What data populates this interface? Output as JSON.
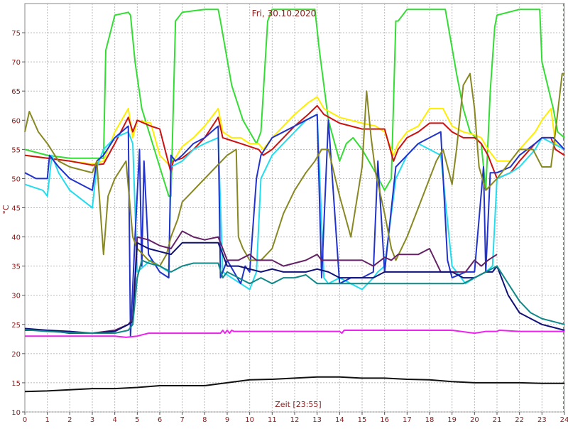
{
  "chart_data": {
    "type": "line",
    "title": "Fri, 30.10.2020",
    "xlabel": "Zeit [23:55]",
    "ylabel": "°C",
    "xlim": [
      0,
      24
    ],
    "ylim": [
      10,
      80
    ],
    "xticks": [
      "0",
      "1",
      "2",
      "3",
      "4",
      "5",
      "6",
      "7",
      "8",
      "9",
      "10",
      "11",
      "12",
      "13",
      "14",
      "15",
      "16",
      "17",
      "18",
      "19",
      "20",
      "21",
      "22",
      "23",
      "24"
    ],
    "yticks": [
      "10",
      "15",
      "20",
      "25",
      "30",
      "35",
      "40",
      "45",
      "50",
      "55",
      "60",
      "65",
      "70",
      "75"
    ],
    "grid": true,
    "series": [
      {
        "color": "#33dd33",
        "x": [
          0,
          1,
          2,
          3,
          3.5,
          3.6,
          4,
          4.6,
          4.7,
          4.9,
          5.2,
          6,
          6.4,
          6.5,
          6.7,
          7,
          8,
          8.6,
          8.7,
          9.2,
          9.7,
          10.3,
          10.5,
          10.8,
          11,
          12,
          12.5,
          12.9,
          13.1,
          13.5,
          14,
          14.3,
          14.6,
          15,
          15.6,
          16,
          16.3,
          16.5,
          16.6,
          17,
          18,
          18.6,
          18.7,
          19.2,
          19.5,
          19.8,
          20.3,
          20.5,
          20.7,
          20.9,
          21,
          22,
          22.9,
          23,
          23.5,
          23.7,
          24
        ],
        "y": [
          55,
          54,
          53.5,
          53.5,
          53.5,
          72,
          78,
          78.5,
          78,
          70,
          62,
          52,
          47,
          47,
          77,
          78.5,
          79,
          79,
          77,
          66,
          60,
          56,
          58,
          77,
          79,
          79,
          79,
          79,
          72,
          60,
          53,
          56,
          57,
          55,
          51,
          48,
          50,
          77,
          77,
          79,
          79,
          79,
          79,
          68,
          62,
          58,
          56,
          48,
          65,
          76,
          78,
          79,
          79,
          70,
          62,
          58,
          57
        ]
      },
      {
        "color": "#ffee00",
        "x": [
          0,
          1,
          2,
          3,
          3.5,
          4,
          4.6,
          4.8,
          5,
          5.6,
          6,
          6.5,
          6.6,
          7,
          7,
          7.5,
          8,
          8.6,
          8.8,
          9.2,
          9.6,
          10,
          10.4,
          10.6,
          11,
          11.5,
          12,
          12.6,
          13,
          13.3,
          14,
          14.5,
          15,
          15.6,
          16,
          16.4,
          16.6,
          17,
          17.5,
          18,
          18.6,
          19,
          19.5,
          20,
          20.3,
          20.6,
          21,
          21.6,
          22,
          22.7,
          23,
          23.4,
          23.6,
          24
        ],
        "y": [
          54,
          53.5,
          53,
          52.5,
          53,
          58,
          62,
          57,
          60,
          59.5,
          54,
          52,
          53,
          55.5,
          55.5,
          57,
          59,
          62,
          58,
          57,
          57,
          56,
          56,
          55,
          57,
          59,
          61,
          63,
          64,
          62,
          60.5,
          60,
          59.5,
          59,
          58,
          54,
          56,
          58,
          59,
          62,
          62,
          59,
          58,
          57.5,
          57,
          55,
          53,
          53,
          55,
          58,
          60,
          62,
          56,
          55
        ]
      },
      {
        "color": "#cc1111",
        "x": [
          0,
          1,
          2,
          3,
          3.5,
          4,
          4.6,
          4.8,
          5,
          5.6,
          6,
          6.5,
          6.6,
          7,
          7.5,
          8,
          8.6,
          8.8,
          9.2,
          9.6,
          10,
          10.4,
          10.6,
          11,
          11.5,
          12,
          12.6,
          13,
          13.3,
          14,
          14.5,
          15,
          15.6,
          16,
          16.4,
          16.6,
          17,
          17.5,
          18,
          18.6,
          19,
          19.5,
          20,
          20.3,
          20.6,
          21,
          21.6,
          22,
          22.7,
          23,
          23.4,
          23.6,
          24
        ],
        "y": [
          54,
          53.5,
          53,
          52.3,
          52.5,
          56,
          60.5,
          58,
          60,
          59,
          58.5,
          51,
          53,
          53.5,
          55,
          57,
          60.5,
          57,
          56.5,
          56,
          55.5,
          55,
          54,
          55,
          57,
          59,
          61,
          62.5,
          61,
          59.5,
          59,
          58.5,
          58.5,
          58.5,
          53,
          55,
          57,
          58,
          59.5,
          59.5,
          58,
          57,
          57,
          56,
          54,
          50,
          51,
          53,
          56,
          57,
          57,
          55,
          54
        ]
      },
      {
        "color": "#22ddee",
        "x": [
          0,
          0.8,
          1,
          1.2,
          1.5,
          2,
          3,
          3.2,
          3.5,
          4,
          4.6,
          4.8,
          5,
          5.6,
          6,
          6.4,
          6.5,
          7,
          7.5,
          8,
          8.6,
          8.8,
          9.2,
          9.6,
          10,
          10.3,
          10.5,
          11,
          11.5,
          12,
          12.5,
          13,
          13.3,
          13.5,
          14,
          14.5,
          15,
          15.5,
          15.7,
          16,
          16.5,
          17,
          17.5,
          18,
          18.5,
          19,
          19.6,
          20,
          20.5,
          20.8,
          21,
          21.6,
          22,
          22.7,
          23,
          23.5,
          24
        ],
        "y": [
          49,
          48,
          47,
          54,
          51,
          48,
          45,
          52,
          55,
          57,
          58,
          56,
          34,
          36,
          35,
          34,
          52,
          53,
          55,
          56,
          57,
          34,
          33,
          32,
          31,
          34,
          50,
          54,
          56,
          58,
          60,
          61,
          33,
          32,
          33,
          32,
          31,
          33,
          34,
          35,
          50,
          54,
          56,
          55,
          54,
          35,
          32,
          33,
          34,
          35,
          50,
          51,
          52,
          55,
          57,
          56,
          55
        ]
      },
      {
        "color": "#2233cc",
        "x": [
          0,
          0.5,
          1,
          1.1,
          1.5,
          2,
          3,
          3.2,
          3.5,
          4,
          4.6,
          4.7,
          4.9,
          5.1,
          5.2,
          5.3,
          5.5,
          6,
          6.4,
          6.5,
          6.7,
          7,
          7.5,
          8,
          8.6,
          8.7,
          9,
          9.6,
          9.8,
          10,
          10.3,
          10.5,
          11,
          11.5,
          12,
          12.5,
          13,
          13.2,
          13.5,
          14,
          14.5,
          15,
          15.5,
          15.7,
          16,
          16.5,
          17,
          17.5,
          18,
          18.5,
          18.8,
          19,
          19.6,
          20,
          20.4,
          20.5,
          20.7,
          21,
          21.6,
          22,
          22.7,
          23,
          23.5,
          24
        ],
        "y": [
          51,
          50,
          50,
          54,
          52,
          50,
          48,
          53,
          54,
          57,
          59,
          23,
          40,
          55,
          35,
          53,
          37,
          34,
          33,
          54,
          53,
          54,
          56,
          57,
          59,
          33,
          36,
          32,
          35,
          34,
          50,
          54,
          57,
          58,
          59,
          60,
          61,
          33,
          60,
          32,
          33,
          33,
          34,
          53,
          34,
          52,
          54,
          56,
          57,
          58,
          36,
          33,
          34,
          34,
          52,
          34,
          51,
          51,
          52,
          54,
          56,
          57,
          57,
          55
        ]
      },
      {
        "color": "#888822",
        "x": [
          0,
          0.2,
          0.6,
          1,
          1.5,
          2,
          3,
          3.2,
          3.5,
          3.7,
          4,
          4.5,
          4.8,
          5,
          5.5,
          6,
          6.3,
          6.5,
          6.8,
          7,
          7.5,
          8,
          8.5,
          9,
          9.4,
          9.5,
          9.7,
          10,
          10.5,
          11,
          11.5,
          12,
          12.5,
          12.9,
          13.2,
          13.5,
          14,
          14.5,
          15,
          15.2,
          15.4,
          15.6,
          16,
          16.3,
          16.5,
          17,
          17.5,
          18,
          18.3,
          18.6,
          19,
          19.2,
          19.5,
          19.8,
          20,
          20.2,
          20.5,
          21,
          21.6,
          22,
          22.6,
          23,
          23.4,
          23.6,
          23.9,
          24
        ],
        "y": [
          58,
          61.5,
          58,
          56,
          53,
          52,
          51,
          53,
          37,
          47,
          50,
          53,
          40,
          38,
          36,
          35,
          37,
          40,
          43,
          46,
          48,
          50,
          52,
          54,
          55,
          40,
          38,
          36,
          36,
          38,
          44,
          48,
          51,
          53,
          55,
          55,
          47,
          40,
          52,
          65,
          57,
          51,
          44,
          38,
          36,
          40,
          45,
          50,
          53,
          55,
          49,
          55,
          66,
          68,
          62,
          52,
          48,
          50,
          53,
          55,
          55,
          52,
          52,
          58,
          68,
          68
        ]
      },
      {
        "color": "#662266",
        "x": [
          0,
          1,
          2,
          3,
          4,
          4.6,
          4.8,
          5,
          5.5,
          6,
          6.5,
          7,
          7.5,
          8,
          8.6,
          8.8,
          9,
          9.5,
          10,
          10.3,
          10.6,
          11,
          11.5,
          12,
          12.5,
          13,
          13.2,
          13.5,
          14,
          14.5,
          15,
          15.5,
          16,
          16.3,
          16.6,
          17,
          17.5,
          18,
          18.5,
          19,
          19.6,
          20,
          20.3,
          20.6,
          21
        ],
        "y": [
          24,
          24,
          23.5,
          23.5,
          24,
          25,
          26,
          40,
          39.5,
          38.5,
          38,
          41,
          40,
          39.5,
          40,
          38,
          36,
          36,
          37,
          36,
          36,
          36,
          35,
          35.5,
          36,
          37,
          36,
          36,
          36,
          36,
          36,
          35,
          36.5,
          36,
          37,
          37,
          37,
          38,
          34,
          34,
          34,
          36,
          35,
          36,
          37
        ]
      },
      {
        "color": "#111177",
        "x": [
          0,
          1,
          2,
          3,
          4,
          4.6,
          4.8,
          5,
          5.5,
          6,
          6.5,
          7,
          7.5,
          8,
          8.6,
          8.8,
          9,
          9.5,
          10,
          10.5,
          11,
          11.5,
          12,
          12.5,
          13,
          13.5,
          14,
          14.5,
          15,
          15.5,
          16,
          16.5,
          17,
          17.5,
          18,
          18.5,
          19,
          19.5,
          20,
          20.5,
          20.8,
          21,
          21.5,
          22,
          22.5,
          23,
          23.5,
          24
        ],
        "y": [
          24.3,
          24,
          23.8,
          23.5,
          23.8,
          25,
          25.5,
          39,
          38,
          37.5,
          37,
          39,
          39,
          39,
          39,
          37,
          35,
          35,
          34.5,
          34,
          34.5,
          34,
          34,
          34,
          34.5,
          34,
          33,
          33,
          33,
          33,
          34,
          34,
          34,
          34,
          34,
          34,
          34,
          33,
          33,
          34,
          34,
          35,
          30,
          27,
          26,
          25,
          24.5,
          24
        ]
      },
      {
        "color": "#118888",
        "x": [
          0,
          1,
          2,
          3,
          4,
          4.6,
          4.8,
          5,
          5.2,
          5.5,
          6,
          6.5,
          7,
          7.5,
          8,
          8.6,
          8.8,
          9,
          9.5,
          10,
          10.5,
          11,
          11.5,
          12,
          12.5,
          13,
          13.5,
          14,
          14.5,
          15,
          15.5,
          16,
          16.5,
          17,
          17.5,
          18,
          18.5,
          19,
          19.5,
          20,
          20.5,
          21,
          21.5,
          22,
          22.5,
          23,
          23.5,
          24
        ],
        "y": [
          24.1,
          23.8,
          23.6,
          23.5,
          23.5,
          24,
          25,
          33,
          36,
          35.5,
          35,
          34,
          35,
          35.5,
          35.5,
          35.5,
          33,
          34,
          33,
          32,
          33,
          32,
          33,
          33,
          33.5,
          32,
          32,
          32,
          32,
          32,
          32,
          32,
          32,
          32,
          32,
          32,
          32,
          32,
          32,
          33,
          34,
          35,
          32,
          29,
          27,
          26,
          25.5,
          25
        ]
      },
      {
        "color": "#ee22ee",
        "x": [
          0,
          1,
          2,
          3,
          4,
          4.5,
          5,
          5.5,
          6,
          7,
          8,
          8.7,
          8.8,
          8.9,
          9,
          9.1,
          9.2,
          9.3,
          10,
          11,
          12,
          13,
          14,
          14.1,
          14.2,
          14.3,
          15,
          16,
          17,
          18,
          19,
          20,
          20.5,
          21,
          21.1,
          22,
          23,
          24
        ],
        "y": [
          23,
          23,
          23,
          23,
          23,
          22.8,
          23,
          23.5,
          23.5,
          23.5,
          23.5,
          23.5,
          24,
          23.5,
          24,
          23.5,
          24,
          23.8,
          23.8,
          23.8,
          23.8,
          23.8,
          23.8,
          23.5,
          24,
          24,
          24,
          24,
          24,
          24,
          24,
          23.5,
          23.8,
          23.8,
          24,
          23.8,
          23.8,
          23.8
        ]
      },
      {
        "color": "#111111",
        "x": [
          0,
          1,
          2,
          3,
          4,
          5,
          6,
          7,
          8,
          9,
          10,
          11,
          12,
          13,
          14,
          15,
          16,
          17,
          18,
          19,
          20,
          21,
          22,
          23,
          24
        ],
        "y": [
          13.5,
          13.6,
          13.8,
          14,
          14,
          14.2,
          14.5,
          14.5,
          14.5,
          15,
          15.5,
          15.6,
          15.8,
          16,
          16,
          15.8,
          15.8,
          15.6,
          15.5,
          15.2,
          15,
          15,
          15,
          14.9,
          14.9
        ]
      }
    ]
  }
}
